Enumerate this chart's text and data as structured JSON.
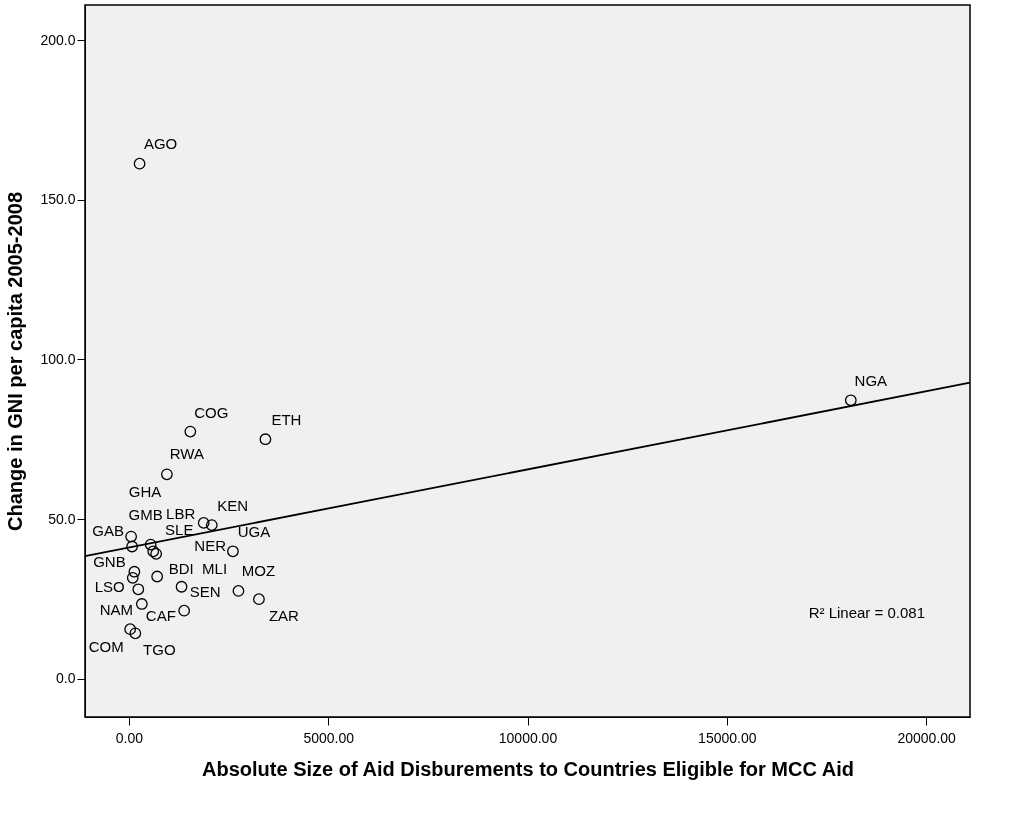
{
  "chart_data": {
    "type": "scatter",
    "xlabel": "Absolute Size of Aid Disburements to Countries Eligible for MCC Aid",
    "ylabel": "Change in GNI per capita 2005-2008",
    "xlim": [
      -1100,
      21100
    ],
    "ylim": [
      -12,
      211
    ],
    "xticks": [
      {
        "value": 0,
        "label": "0.00"
      },
      {
        "value": 5000,
        "label": "5000.00"
      },
      {
        "value": 10000,
        "label": "10000.00"
      },
      {
        "value": 15000,
        "label": "15000.00"
      },
      {
        "value": 20000,
        "label": "20000.00"
      }
    ],
    "yticks": [
      {
        "value": 0,
        "label": "0.0"
      },
      {
        "value": 50,
        "label": "50.0"
      },
      {
        "value": 100,
        "label": "100.0"
      },
      {
        "value": 150,
        "label": "150.0"
      },
      {
        "value": 200,
        "label": "200.0"
      }
    ],
    "grid": false,
    "series": [
      {
        "marker": "circle",
        "color": "#000000",
        "x": [
          269,
          18110,
          1542,
          3426,
          954,
          1877,
          2080,
          57,
          82,
          547,
          612,
          685,
          2611,
          139,
          98,
          710,
          237,
          1322,
          2749,
          3263,
          326,
          1387,
          33,
          163
        ],
        "values": [
          161.3,
          87.2,
          77.4,
          75.0,
          64.0,
          48.8,
          48.1,
          44.5,
          41.4,
          42.0,
          39.9,
          39.1,
          39.9,
          33.5,
          31.6,
          32.0,
          28.0,
          28.8,
          27.5,
          24.9,
          23.4,
          21.3,
          15.5,
          14.2
        ]
      },
      {
        "type": "line",
        "marker": "none",
        "color": "#000000",
        "line_style": "solid",
        "x": [
          -1100,
          21100
        ],
        "values": [
          38.4,
          92.7
        ]
      }
    ],
    "annotations": [
      {
        "text": "AGO",
        "x": 269,
        "y": 161.3
      },
      {
        "text": "NGA",
        "x": 18110,
        "y": 87.2
      },
      {
        "text": "COG",
        "x": 1542,
        "y": 77.4
      },
      {
        "text": "ETH",
        "x": 3426,
        "y": 75.0
      },
      {
        "text": "RWA",
        "x": 954,
        "y": 64.0
      },
      {
        "text": "LBR",
        "x": 1877,
        "y": 48.8
      },
      {
        "text": "KEN",
        "x": 2080,
        "y": 48.1
      },
      {
        "text": "GHA",
        "x": 57,
        "y": 44.5
      },
      {
        "text": "GAB",
        "x": 82,
        "y": 41.4
      },
      {
        "text": "GMB",
        "x": 547,
        "y": 42.0
      },
      {
        "text": "SLE",
        "x": 612,
        "y": 39.9
      },
      {
        "text": "NER",
        "x": 685,
        "y": 39.1
      },
      {
        "text": "UGA",
        "x": 2611,
        "y": 39.9
      },
      {
        "text": "GNB",
        "x": 139,
        "y": 33.5
      },
      {
        "text": "MLI",
        "x": 1322,
        "y": 28.8
      },
      {
        "text": "BDI",
        "x": 710,
        "y": 32.0
      },
      {
        "text": "LSO",
        "x": 98,
        "y": 31.6
      },
      {
        "text": "SEN",
        "x": 1387,
        "y": 21.3
      },
      {
        "text": "MOZ",
        "x": 2749,
        "y": 27.5
      },
      {
        "text": "ZAR",
        "x": 3263,
        "y": 24.9
      },
      {
        "text": "NAM",
        "x": 237,
        "y": 28.0
      },
      {
        "text": "CAF",
        "x": 326,
        "y": 23.4
      },
      {
        "text": "COM",
        "x": 33,
        "y": 15.5
      },
      {
        "text": "TGO",
        "x": 163,
        "y": 14.2
      },
      "R² Linear = 0.081"
    ]
  }
}
